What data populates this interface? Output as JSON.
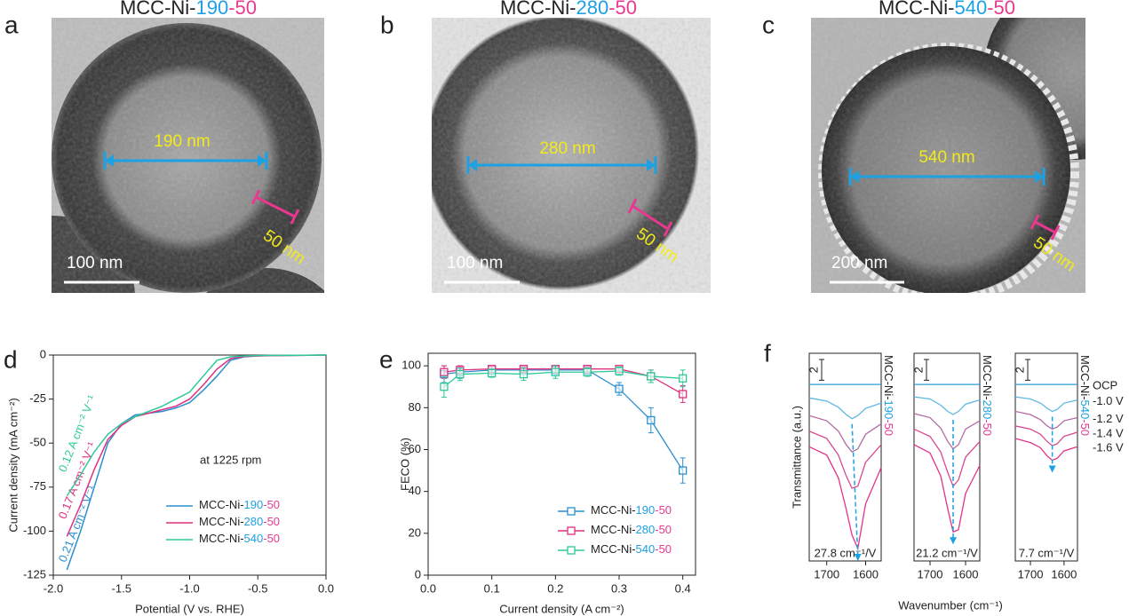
{
  "tem_panels": [
    {
      "letter": "a",
      "title": "MCC-Ni-190-50",
      "diameter": "190 nm",
      "shell": "50 nm",
      "scale_bar": "100 nm"
    },
    {
      "letter": "b",
      "title": "MCC-Ni-280-50",
      "diameter": "280 nm",
      "shell": "50 nm",
      "scale_bar": "100 nm"
    },
    {
      "letter": "c",
      "title": "MCC-Ni-540-50",
      "diameter": "540 nm",
      "shell": "50 nm",
      "scale_bar": "200 nm"
    }
  ],
  "chart_data": [
    {
      "letter": "d",
      "type": "line",
      "xlabel": "Potential (V vs. RHE)",
      "ylabel": "Current density (mA cm⁻²)",
      "annotation": "at 1225 rpm",
      "xlim": [
        -2,
        0
      ],
      "xticks": [
        {
          "value": -2,
          "label": "-2.0"
        },
        -1.5,
        {
          "value": -1,
          "label": "-1.0"
        },
        -0.5,
        {
          "value": 0,
          "label": "0.0"
        }
      ],
      "ylim": [
        -125,
        0
      ],
      "yticks": [
        0,
        -25,
        -50,
        -75,
        -100,
        -125
      ],
      "legend": "lower right",
      "x": [
        -1.9,
        -1.8,
        -1.7,
        -1.6,
        -1.5,
        -1.4,
        -1.3,
        -1.2,
        -1.1,
        -1.0,
        -0.9,
        -0.8,
        -0.7,
        -0.6,
        -0.5,
        -0.4,
        -0.2,
        0.0
      ],
      "series": [
        {
          "name": "MCC-Ni-190-50",
          "color": "#2b8fd0",
          "slope_label": "0.21 A cm⁻² V⁻¹",
          "values": [
            -122,
            -100,
            -75,
            -50,
            -39,
            -34,
            -33,
            -32,
            -30,
            -27,
            -20,
            -12,
            -3,
            -1,
            -0.5,
            -0.3,
            -0.2,
            0
          ]
        },
        {
          "name": "MCC-Ni-280-50",
          "color": "#e0307f",
          "slope_label": "0.17 A cm⁻² V⁻¹",
          "values": [
            -103,
            -85,
            -65,
            -48,
            -40,
            -35,
            -33,
            -31,
            -29,
            -25,
            -17,
            -8,
            -2,
            -0.8,
            -0.5,
            -0.3,
            -0.2,
            0
          ]
        },
        {
          "name": "MCC-Ni-540-50",
          "color": "#2ec99a",
          "slope_label": "0.12 A cm⁻² V⁻¹",
          "values": [
            -80,
            -68,
            -55,
            -45,
            -39,
            -35,
            -32,
            -29,
            -25,
            -21,
            -12,
            -3,
            -1,
            -0.5,
            -0.3,
            -0.2,
            -0.1,
            0
          ]
        }
      ]
    },
    {
      "letter": "e",
      "type": "errorbar",
      "xlabel": "Current density (A cm⁻²)",
      "ylabel": "FECO (%)",
      "xlim": [
        0,
        0.42
      ],
      "xticks": [
        {
          "value": 0,
          "label": "0.0"
        },
        0.1,
        0.2,
        0.3,
        0.4
      ],
      "ylim": [
        0,
        106
      ],
      "yticks": [
        0,
        20,
        40,
        60,
        80,
        100
      ],
      "legend": "lower right",
      "x": [
        0.025,
        0.05,
        0.1,
        0.15,
        0.2,
        0.25,
        0.3,
        0.35,
        0.4
      ],
      "series": [
        {
          "name": "MCC-Ni-190-50",
          "color": "#2b8fd0",
          "values": [
            96,
            97,
            98,
            98,
            98,
            98,
            89,
            74,
            50
          ],
          "errors": [
            4,
            3,
            2,
            2,
            2,
            2,
            3,
            6,
            6
          ]
        },
        {
          "name": "MCC-Ni-280-50",
          "color": "#e0307f",
          "values": [
            97,
            98,
            98.5,
            98.5,
            98.5,
            98.5,
            98.5,
            95,
            86.5
          ],
          "errors": [
            3,
            2,
            1,
            1,
            1,
            1,
            1,
            3,
            4
          ]
        },
        {
          "name": "MCC-Ni-540-50",
          "color": "#2ec99a",
          "values": [
            90,
            96,
            96.5,
            96,
            97,
            97,
            97.5,
            95,
            94
          ],
          "errors": [
            5,
            3,
            2,
            3,
            3,
            2,
            2,
            3,
            4
          ]
        }
      ]
    },
    {
      "letter": "f",
      "type": "spectra",
      "xlabel": "Wavenumber (cm⁻¹)",
      "ylabel": "Transmittance (a.u.)",
      "xlim": [
        1745,
        1560
      ],
      "xticks": [
        1700,
        1600
      ],
      "ylim": [
        -17,
        3
      ],
      "scale_bar": 2,
      "x": [
        1745,
        1700,
        1670,
        1650,
        1635,
        1620,
        1600,
        1560
      ],
      "legend": [
        {
          "name": "OCP",
          "color": "#2c9ed8"
        },
        {
          "name": "-1.0 V",
          "color": "#5db8e2"
        },
        {
          "name": "-1.2 V",
          "color": "#b46aa2"
        },
        {
          "name": "-1.4 V",
          "color": "#d84a90"
        },
        {
          "name": "-1.6 V",
          "color": "#e3338a"
        }
      ],
      "subplots": [
        {
          "label": "MCC-Ni-190-50",
          "annotation": "27.8 cm⁻¹/V",
          "series": [
            {
              "values": [
                0,
                0,
                0,
                0,
                0,
                0,
                0,
                0
              ]
            },
            {
              "values": [
                -1.3,
                -1.6,
                -2.2,
                -2.9,
                -3.3,
                -3.0,
                -2.3,
                -1.8
              ]
            },
            {
              "values": [
                -3.0,
                -3.5,
                -4.5,
                -5.8,
                -6.5,
                -6.2,
                -4.8,
                -3.8
              ]
            },
            {
              "values": [
                -4.5,
                -5.2,
                -6.8,
                -8.8,
                -10.0,
                -9.8,
                -7.5,
                -5.8
              ]
            },
            {
              "values": [
                -6.0,
                -6.8,
                -9.0,
                -12.0,
                -14.5,
                -15.8,
                -11.5,
                -8.0
              ]
            }
          ]
        },
        {
          "label": "MCC-Ni-280-50",
          "annotation": "21.2 cm⁻¹/V",
          "series": [
            {
              "values": [
                0,
                0,
                0,
                0,
                0,
                0,
                0,
                0
              ]
            },
            {
              "values": [
                -1.2,
                -1.4,
                -2.0,
                -2.6,
                -2.9,
                -2.6,
                -1.9,
                -1.5
              ]
            },
            {
              "values": [
                -2.8,
                -3.2,
                -4.2,
                -5.5,
                -6.2,
                -5.8,
                -4.3,
                -3.5
              ]
            },
            {
              "values": [
                -4.3,
                -5.0,
                -6.5,
                -8.5,
                -9.8,
                -9.2,
                -7.0,
                -5.5
              ]
            },
            {
              "values": [
                -5.8,
                -6.6,
                -8.8,
                -12.0,
                -14.2,
                -14.0,
                -10.5,
                -7.8
              ]
            }
          ]
        },
        {
          "label": "MCC-Ni-540-50",
          "annotation": "7.7 cm⁻¹/V",
          "series": [
            {
              "values": [
                0,
                0,
                0,
                0,
                0,
                0,
                0,
                0
              ]
            },
            {
              "values": [
                -1.2,
                -1.4,
                -1.8,
                -2.3,
                -2.6,
                -2.4,
                -1.8,
                -1.5
              ]
            },
            {
              "values": [
                -2.6,
                -2.9,
                -3.4,
                -4.0,
                -4.3,
                -4.1,
                -3.5,
                -3.2
              ]
            },
            {
              "values": [
                -4.0,
                -4.3,
                -4.8,
                -5.5,
                -5.9,
                -5.7,
                -5.0,
                -4.6
              ]
            },
            {
              "values": [
                -5.2,
                -5.6,
                -6.1,
                -6.9,
                -7.3,
                -7.1,
                -6.4,
                -6.0
              ]
            }
          ]
        }
      ]
    }
  ]
}
